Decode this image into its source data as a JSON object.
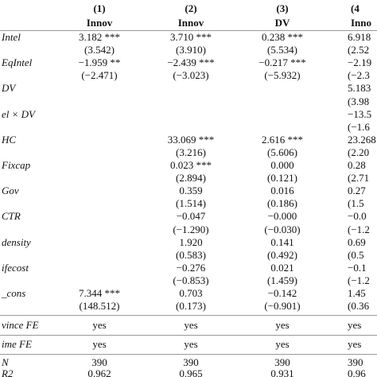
{
  "header": {
    "columns": [
      "(1)",
      "(2)",
      "(3)",
      "(4"
    ],
    "depvars": [
      "Innov",
      "Innov",
      "DV",
      "Inno"
    ]
  },
  "rows": [
    {
      "label": "Intel",
      "coef": [
        "3.182 ***",
        "3.710 ***",
        "0.238 ***",
        "6.918"
      ],
      "se": [
        "(3.542)",
        "(3.910)",
        "(5.534)",
        "(2.52"
      ]
    },
    {
      "label": "EqIntel",
      "coef": [
        "−1.959 **",
        "−2.439 ***",
        "−0.217 ***",
        "−2.19"
      ],
      "se": [
        "(−2.471)",
        "(−3.023)",
        "(−5.932)",
        "(−2.3"
      ]
    },
    {
      "label": "DV",
      "coef": [
        null,
        null,
        null,
        "5.183"
      ],
      "se": [
        null,
        null,
        null,
        "(3.98"
      ]
    },
    {
      "label": "el × DV",
      "coef": [
        null,
        null,
        null,
        "−13.5"
      ],
      "se": [
        null,
        null,
        null,
        "(−1.6"
      ]
    },
    {
      "label": "HC",
      "coef": [
        null,
        "33.069 ***",
        "2.616 ***",
        "23.268"
      ],
      "se": [
        null,
        "(3.216)",
        "(5.606)",
        "(2.20"
      ]
    },
    {
      "label": "Fixcap",
      "coef": [
        null,
        "0.023 ***",
        "0.000",
        "0.28"
      ],
      "se": [
        null,
        "(2.894)",
        "(0.121)",
        "(2.71"
      ]
    },
    {
      "label": "Gov",
      "coef": [
        null,
        "0.359",
        "0.016",
        "0.27"
      ],
      "se": [
        null,
        "(1.514)",
        "(0.186)",
        "(1.5"
      ]
    },
    {
      "label": "CTR",
      "coef": [
        null,
        "−0.047",
        "−0.000",
        "−0.0"
      ],
      "se": [
        null,
        "(−1.290)",
        "(−0.030)",
        "(−1.2"
      ]
    },
    {
      "label": "density",
      "coef": [
        null,
        "1.920",
        "0.141",
        "0.69"
      ],
      "se": [
        null,
        "(0.583)",
        "(0.492)",
        "(0.5"
      ]
    },
    {
      "label": "ifecost",
      "coef": [
        null,
        "−0.276",
        "0.021",
        "−0.1"
      ],
      "se": [
        null,
        "(−0.853)",
        "(1.459)",
        "(−1.2"
      ]
    },
    {
      "label": "_cons",
      "coef": [
        "7.344 ***",
        "0.703",
        "−0.142",
        "1.45"
      ],
      "se": [
        "(148.512)",
        "(0.173)",
        "(−0.901)",
        "(0.36"
      ]
    }
  ],
  "footer": [
    {
      "label": "vince FE",
      "cells": [
        "yes",
        "yes",
        "yes",
        "yes"
      ]
    },
    {
      "label": "ime FE",
      "cells": [
        "yes",
        "yes",
        "yes",
        "yes"
      ]
    },
    {
      "label": "N",
      "cells": [
        390,
        390,
        390,
        390
      ]
    },
    {
      "label": "R2",
      "cells": [
        0.962,
        0.965,
        0.931,
        0.96
      ]
    }
  ]
}
